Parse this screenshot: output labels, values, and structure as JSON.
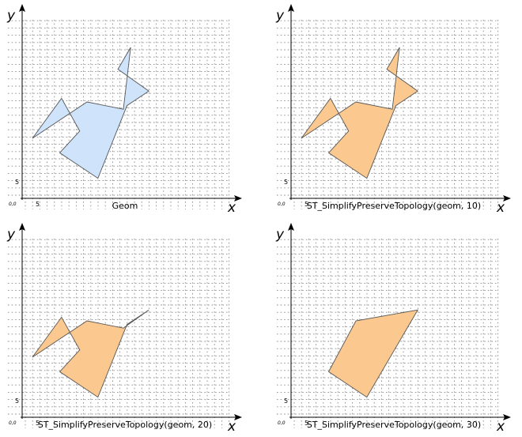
{
  "panels": [
    {
      "caption": "Geom",
      "fill": "#cfe3fb",
      "shape": [
        [
          0,
          15
        ],
        [
          8,
          26
        ],
        [
          13,
          17
        ],
        [
          7.5,
          11
        ],
        [
          18,
          4
        ],
        [
          26,
          24
        ],
        [
          32,
          28
        ],
        [
          23.5,
          34
        ],
        [
          27,
          40
        ],
        [
          25,
          23
        ],
        [
          15,
          25
        ]
      ]
    },
    {
      "caption": "ST_SimplifyPreserveTopology(geom, 10)",
      "fill": "#fbc98f",
      "shape": [
        [
          0,
          15
        ],
        [
          8,
          26
        ],
        [
          13,
          17
        ],
        [
          7.5,
          11
        ],
        [
          18,
          4
        ],
        [
          26,
          24
        ],
        [
          32,
          28
        ],
        [
          23.5,
          34
        ],
        [
          27,
          40
        ],
        [
          25,
          23
        ],
        [
          15,
          25
        ]
      ]
    },
    {
      "caption": "ST_SimplifyPreserveTopology(geom, 20)",
      "fill": "#fbc98f",
      "shape": [
        [
          0,
          15
        ],
        [
          8,
          26
        ],
        [
          13,
          17
        ],
        [
          7.5,
          11
        ],
        [
          18,
          4
        ],
        [
          26,
          24
        ],
        [
          32,
          28
        ],
        [
          25,
          23
        ],
        [
          15,
          25
        ]
      ]
    },
    {
      "caption": "ST_SimplifyPreserveTopology(geom, 30)",
      "fill": "#fbc98f",
      "shape": [
        [
          7.5,
          11
        ],
        [
          18,
          4
        ],
        [
          32,
          28
        ],
        [
          15,
          25
        ]
      ]
    }
  ],
  "axes": {
    "x_label": "x",
    "y_label": "y",
    "origin_label": "0,0",
    "x_tick_label": "5",
    "y_tick_label": "5"
  }
}
